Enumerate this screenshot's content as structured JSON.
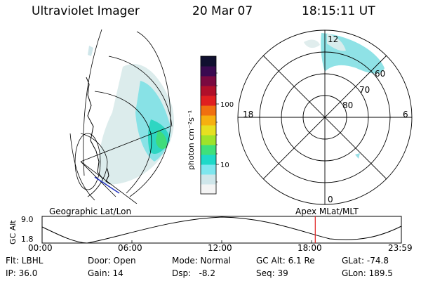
{
  "header": {
    "instrument": "Ultraviolet Imager",
    "date": "20 Mar 07",
    "time": "18:15:11 UT"
  },
  "colorbar": {
    "unit_label": "photon cm⁻²s⁻¹",
    "ticks": [
      "100",
      "10"
    ],
    "scale": "log",
    "colors": [
      "#f4f4f4",
      "#cfe6ea",
      "#7ee6ee",
      "#1ed9c8",
      "#3fe07a",
      "#9ee32a",
      "#e6e020",
      "#f6b010",
      "#f07010",
      "#e02020",
      "#b0102a",
      "#7a0a40",
      "#3a0a50",
      "#101030"
    ]
  },
  "polar_plot": {
    "mlt_labels": [
      "12",
      "18",
      "6",
      "0"
    ],
    "mlat_labels": [
      "60",
      "70",
      "80"
    ]
  },
  "plot_labels": {
    "left": "Geographic Lat/Lon",
    "right": "Apex MLat/MLT"
  },
  "altitude_plot": {
    "ylabel": "GC Alt",
    "yticks": [
      "9.0",
      "1.8"
    ],
    "xticks": [
      "00:00",
      "06:00",
      "12:00",
      "18:00",
      "23:59"
    ],
    "current_time_marker": "18:15",
    "marker_color": "#e02020"
  },
  "info": {
    "filter": "Flt: LBHL",
    "ip": "IP: 36.0",
    "door": "Door: Open",
    "gain": "Gain: 14",
    "mode": "Mode: Normal",
    "dsp": "Dsp:   -8.2",
    "gc_alt": "GC Alt: 6.1 Re",
    "seq": "Seq: 39",
    "glat": "GLat: -74.8",
    "glon": "GLon: 189.5"
  }
}
